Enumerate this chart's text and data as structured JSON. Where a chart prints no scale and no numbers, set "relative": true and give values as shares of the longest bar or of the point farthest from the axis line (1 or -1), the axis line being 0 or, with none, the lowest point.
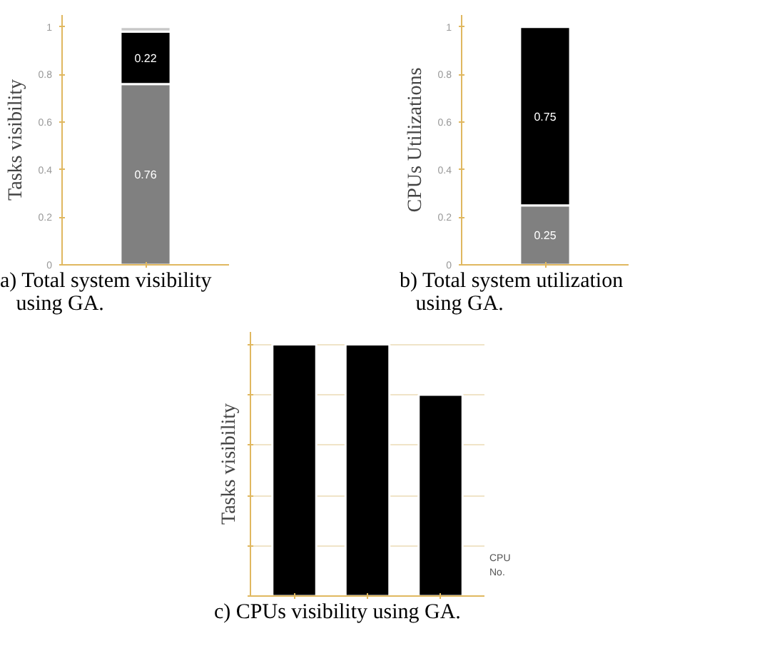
{
  "chart_data": [
    {
      "type": "bar",
      "title": "a) Total system visibility\n   using GA.",
      "ylabel": "Tasks visibility",
      "categories": [
        null
      ],
      "stacked": true,
      "ylim": [
        0,
        1.05
      ],
      "yticks": [
        0,
        0.2,
        0.4,
        0.6,
        0.8,
        1
      ],
      "tick_labels": "y",
      "series": [
        {
          "color": "#808080",
          "values": [
            0.76
          ],
          "value_labels": [
            "0.76"
          ]
        },
        {
          "color": "#000000",
          "values": [
            0.22
          ],
          "value_labels": [
            "0.22"
          ]
        },
        {
          "color": "#c8c8c8",
          "values": [
            0.02
          ]
        }
      ]
    },
    {
      "type": "bar",
      "title": "b) Total system utilization\n   using GA.",
      "ylabel": "CPUs Utilizations",
      "categories": [
        null
      ],
      "stacked": true,
      "ylim": [
        0,
        1.05
      ],
      "yticks": [
        0,
        0.2,
        0.4,
        0.6,
        0.8,
        1
      ],
      "tick_labels": "y",
      "series": [
        {
          "color": "#808080",
          "values": [
            0.25
          ],
          "value_labels": [
            "0.25"
          ]
        },
        {
          "color": "#000000",
          "values": [
            0.75
          ],
          "value_labels": [
            "0.75"
          ]
        }
      ]
    },
    {
      "type": "bar",
      "title": "c) CPUs visibility using GA.",
      "ylabel": "Tasks visibility",
      "xlabel": "CPU\nNo.",
      "categories": [
        null,
        null,
        null
      ],
      "relative": true,
      "grid": "y",
      "tick_labels": false,
      "series": [
        {
          "color": "#000000",
          "values": [
            1,
            1,
            0.8
          ]
        }
      ]
    }
  ]
}
